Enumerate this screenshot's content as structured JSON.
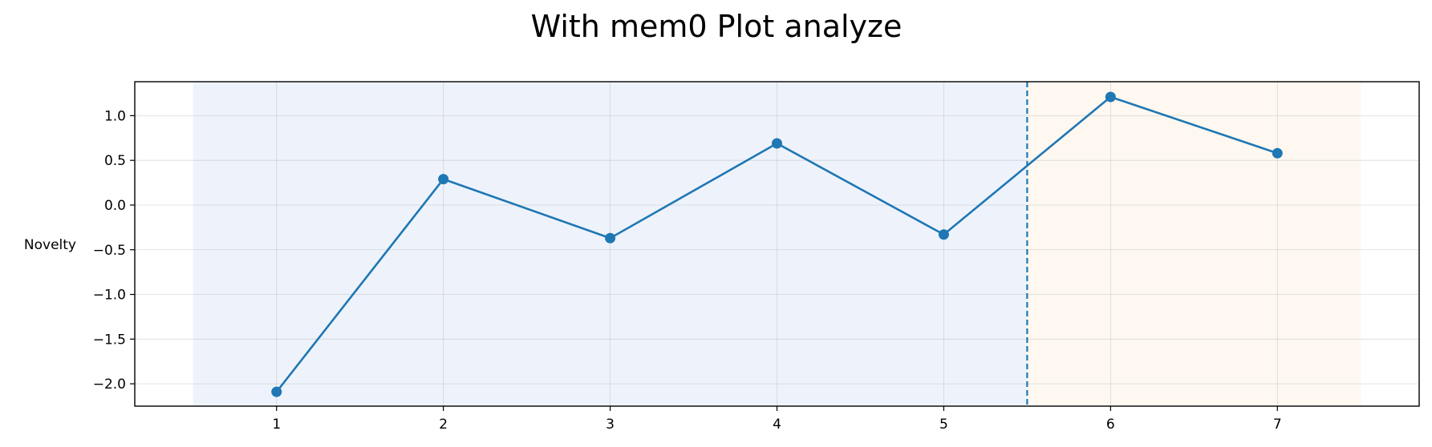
{
  "chart_data": {
    "type": "line",
    "title": "With mem0 Plot analyze",
    "xlabel": "",
    "ylabel": "Novelty",
    "x": [
      1,
      2,
      3,
      4,
      5,
      6,
      7
    ],
    "series": [
      {
        "values": [
          -2.09,
          0.29,
          -0.37,
          0.69,
          -0.33,
          1.21,
          0.58
        ],
        "color": "#1f77b4",
        "marker": "circle"
      }
    ],
    "xlim": [
      0.15,
      7.85
    ],
    "ylim": [
      -2.25,
      1.38
    ],
    "xticks": [
      "1",
      "2",
      "3",
      "4",
      "5",
      "6",
      "7"
    ],
    "yticks": [
      "1.0",
      "0.5",
      "0.0",
      "−0.5",
      "−1.0",
      "−1.5",
      "−2.0"
    ],
    "ytick_values": [
      1.0,
      0.5,
      0.0,
      -0.5,
      -1.0,
      -1.5,
      -2.0
    ],
    "grid": true,
    "shaded_regions": [
      {
        "x_start": 0.5,
        "x_end": 5.5,
        "color": "#eef3fb"
      },
      {
        "x_start": 5.5,
        "x_end": 7.5,
        "color": "#fef8f0"
      }
    ],
    "vertical_line": {
      "x": 5.5,
      "style": "dashed",
      "color": "#1f77b4"
    }
  }
}
